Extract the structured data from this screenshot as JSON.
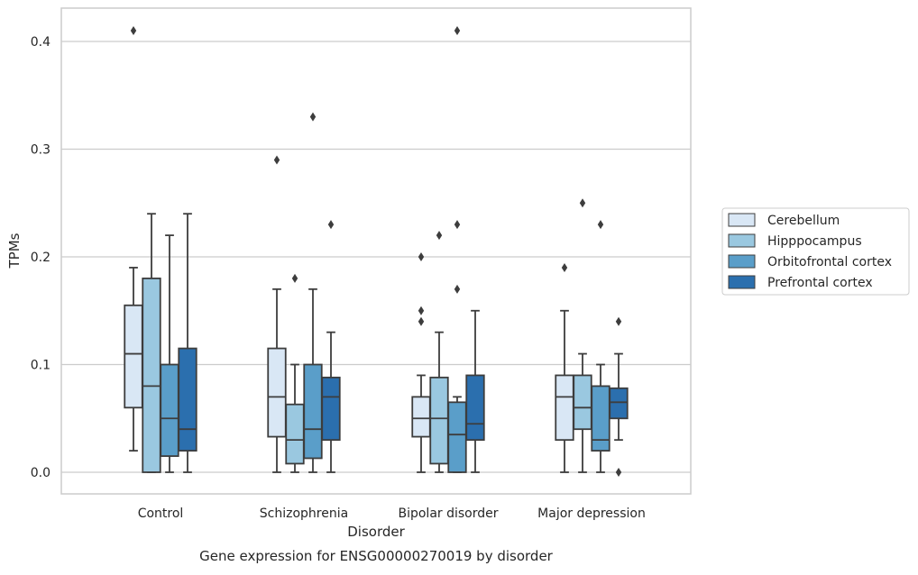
{
  "chart_data": {
    "type": "boxplot",
    "caption": "Gene expression for ENSG00000270019 by disorder",
    "xlabel": "Disorder",
    "ylabel": "TPMs",
    "ylim": [
      -0.02,
      0.43
    ],
    "yticks": [
      "0.0",
      "0.1",
      "0.2",
      "0.3",
      "0.4"
    ],
    "grid": true,
    "legend_position": "right",
    "categories": [
      "Control",
      "Schizophrenia",
      "Bipolar disorder",
      "Major depression"
    ],
    "series": [
      {
        "name": "Cerebellum",
        "color": "#d9e7f5",
        "boxes": [
          {
            "whislo": 0.02,
            "q1": 0.06,
            "med": 0.11,
            "q3": 0.155,
            "whishi": 0.19,
            "fliers": [
              0.41
            ]
          },
          {
            "whislo": 0.0,
            "q1": 0.033,
            "med": 0.07,
            "q3": 0.115,
            "whishi": 0.17,
            "fliers": [
              0.29
            ]
          },
          {
            "whislo": 0.0,
            "q1": 0.033,
            "med": 0.05,
            "q3": 0.07,
            "whishi": 0.09,
            "fliers": [
              0.14,
              0.15,
              0.2
            ]
          },
          {
            "whislo": 0.0,
            "q1": 0.03,
            "med": 0.07,
            "q3": 0.09,
            "whishi": 0.15,
            "fliers": [
              0.19
            ]
          }
        ]
      },
      {
        "name": "Hipppocampus",
        "color": "#9ac8e0",
        "boxes": [
          {
            "whislo": 0.0,
            "q1": 0.0,
            "med": 0.08,
            "q3": 0.18,
            "whishi": 0.24,
            "fliers": []
          },
          {
            "whislo": 0.0,
            "q1": 0.008,
            "med": 0.03,
            "q3": 0.063,
            "whishi": 0.1,
            "fliers": [
              0.18
            ]
          },
          {
            "whislo": 0.0,
            "q1": 0.008,
            "med": 0.05,
            "q3": 0.088,
            "whishi": 0.13,
            "fliers": [
              0.22
            ]
          },
          {
            "whislo": 0.0,
            "q1": 0.04,
            "med": 0.06,
            "q3": 0.09,
            "whishi": 0.11,
            "fliers": [
              0.25
            ]
          }
        ]
      },
      {
        "name": "Orbitofrontal cortex",
        "color": "#5a9ec9",
        "boxes": [
          {
            "whislo": 0.0,
            "q1": 0.015,
            "med": 0.05,
            "q3": 0.1,
            "whishi": 0.22,
            "fliers": []
          },
          {
            "whislo": 0.0,
            "q1": 0.013,
            "med": 0.04,
            "q3": 0.1,
            "whishi": 0.17,
            "fliers": [
              0.33
            ]
          },
          {
            "whislo": 0.0,
            "q1": 0.0,
            "med": 0.035,
            "q3": 0.065,
            "whishi": 0.07,
            "fliers": [
              0.17,
              0.23,
              0.41
            ]
          },
          {
            "whislo": 0.0,
            "q1": 0.02,
            "med": 0.03,
            "q3": 0.08,
            "whishi": 0.1,
            "fliers": [
              0.23
            ]
          }
        ]
      },
      {
        "name": "Prefrontal cortex",
        "color": "#2b6fae",
        "boxes": [
          {
            "whislo": 0.0,
            "q1": 0.02,
            "med": 0.04,
            "q3": 0.115,
            "whishi": 0.24,
            "fliers": []
          },
          {
            "whislo": 0.0,
            "q1": 0.03,
            "med": 0.07,
            "q3": 0.088,
            "whishi": 0.13,
            "fliers": [
              0.23
            ]
          },
          {
            "whislo": 0.0,
            "q1": 0.03,
            "med": 0.045,
            "q3": 0.09,
            "whishi": 0.15,
            "fliers": []
          },
          {
            "whislo": 0.03,
            "q1": 0.05,
            "med": 0.065,
            "q3": 0.078,
            "whishi": 0.11,
            "fliers": [
              0.0,
              0.14
            ]
          }
        ]
      }
    ]
  }
}
